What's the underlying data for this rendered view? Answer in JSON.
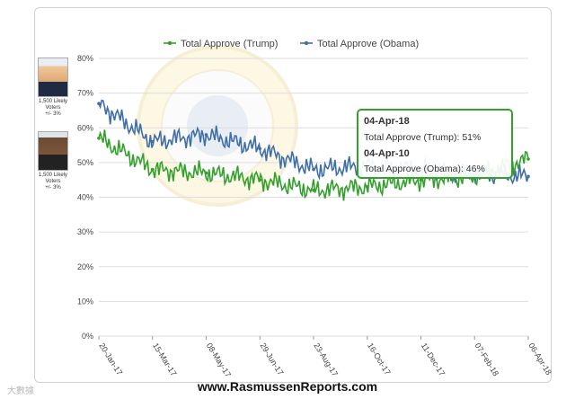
{
  "footer_text": "www.RasmussenReports.com",
  "watermark_text": "大數據",
  "portraits": [
    {
      "name": "trump",
      "caption": "1,500 Likely\nVoters\n+/- 3%"
    },
    {
      "name": "obama",
      "caption": "1,500 Likely\nVoters\n+/- 3%"
    }
  ],
  "seal_text": "PRESIDENT OF THE UNITED STATES",
  "colors": {
    "trump": "#33a02c",
    "obama": "#3f6ea8",
    "grid": "#dddddd",
    "tooltip_border": "#33a02c"
  },
  "chart_data": {
    "type": "line",
    "title": "",
    "xlabel": "",
    "ylabel": "",
    "ylim": [
      0,
      80
    ],
    "y_ticks": [
      "0%",
      "10%",
      "20%",
      "30%",
      "40%",
      "50%",
      "60%",
      "70%",
      "80%"
    ],
    "x_tick_labels": [
      "20-Jan-17",
      "15-Mar-17",
      "08-May-17",
      "29-Jun-17",
      "23-Aug-17",
      "16-Oct-17",
      "11-Dec-17",
      "07-Feb-18",
      "06-Apr-18"
    ],
    "legend_position": "top-center",
    "series": [
      {
        "name": "Total Approve (Trump)",
        "color": "#33a02c",
        "x": [
          "20-Jan-17",
          "15-Mar-17",
          "08-May-17",
          "29-Jun-17",
          "23-Aug-17",
          "16-Oct-17",
          "11-Dec-17",
          "07-Feb-18",
          "06-Apr-18"
        ],
        "values": [
          57,
          48,
          47,
          45,
          42,
          43,
          45,
          46,
          51
        ]
      },
      {
        "name": "Total Approve (Obama)",
        "color": "#3f6ea8",
        "x": [
          "20-Jan-17",
          "15-Mar-17",
          "08-May-17",
          "29-Jun-17",
          "23-Aug-17",
          "16-Oct-17",
          "11-Dec-17",
          "07-Feb-18",
          "06-Apr-18"
        ],
        "values": [
          67,
          56,
          58,
          54,
          48,
          49,
          48,
          47,
          46
        ]
      }
    ],
    "tooltip": {
      "date1": "04-Apr-18",
      "line1": "Total Approve (Trump): 51%",
      "date2": "04-Apr-10",
      "line2": "Total Approve (Obama): 46%"
    }
  }
}
